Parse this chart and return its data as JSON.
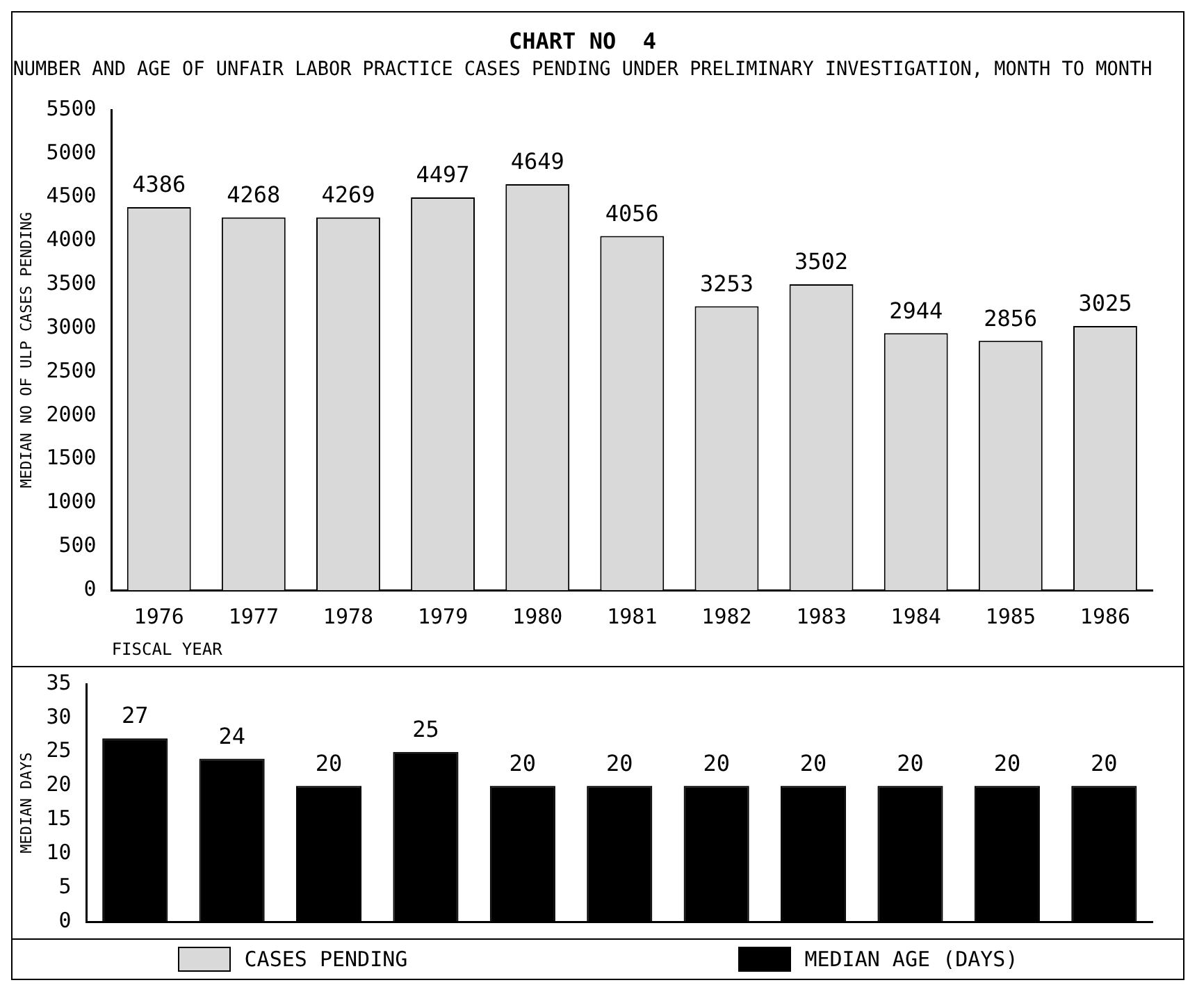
{
  "chart_data": [
    {
      "type": "bar",
      "title": "CHART NO  4",
      "subtitle": "NUMBER AND AGE OF UNFAIR LABOR PRACTICE CASES PENDING UNDER PRELIMINARY INVESTIGATION, MONTH TO MONTH",
      "xlabel": "FISCAL YEAR",
      "ylabel": "MEDIAN NO OF ULP CASES PENDING",
      "categories": [
        "1976",
        "1977",
        "1978",
        "1979",
        "1980",
        "1981",
        "1982",
        "1983",
        "1984",
        "1985",
        "1986"
      ],
      "series": [
        {
          "name": "CASES PENDING",
          "color": "#d9d9d9",
          "values": [
            4386,
            4268,
            4269,
            4497,
            4649,
            4056,
            3253,
            3502,
            2944,
            2856,
            3025
          ]
        }
      ],
      "ylim": [
        0,
        5500
      ],
      "yticks": [
        0,
        500,
        1000,
        1500,
        2000,
        2500,
        3000,
        3500,
        4000,
        4500,
        5000,
        5500
      ],
      "grid": false,
      "data_labels": true,
      "legend": "bottom"
    },
    {
      "type": "bar",
      "ylabel": "MEDIAN DAYS",
      "categories": [
        "1976",
        "1977",
        "1978",
        "1979",
        "1980",
        "1981",
        "1982",
        "1983",
        "1984",
        "1985",
        "1986"
      ],
      "series": [
        {
          "name": "MEDIAN AGE (DAYS)",
          "color": "#000000",
          "values": [
            27,
            24,
            20,
            25,
            20,
            20,
            20,
            20,
            20,
            20,
            20
          ]
        }
      ],
      "ylim": [
        0,
        35
      ],
      "yticks": [
        0,
        5,
        10,
        15,
        20,
        25,
        30,
        35
      ],
      "tick_labels": "y",
      "grid": false,
      "data_labels": true,
      "legend": "bottom"
    }
  ]
}
